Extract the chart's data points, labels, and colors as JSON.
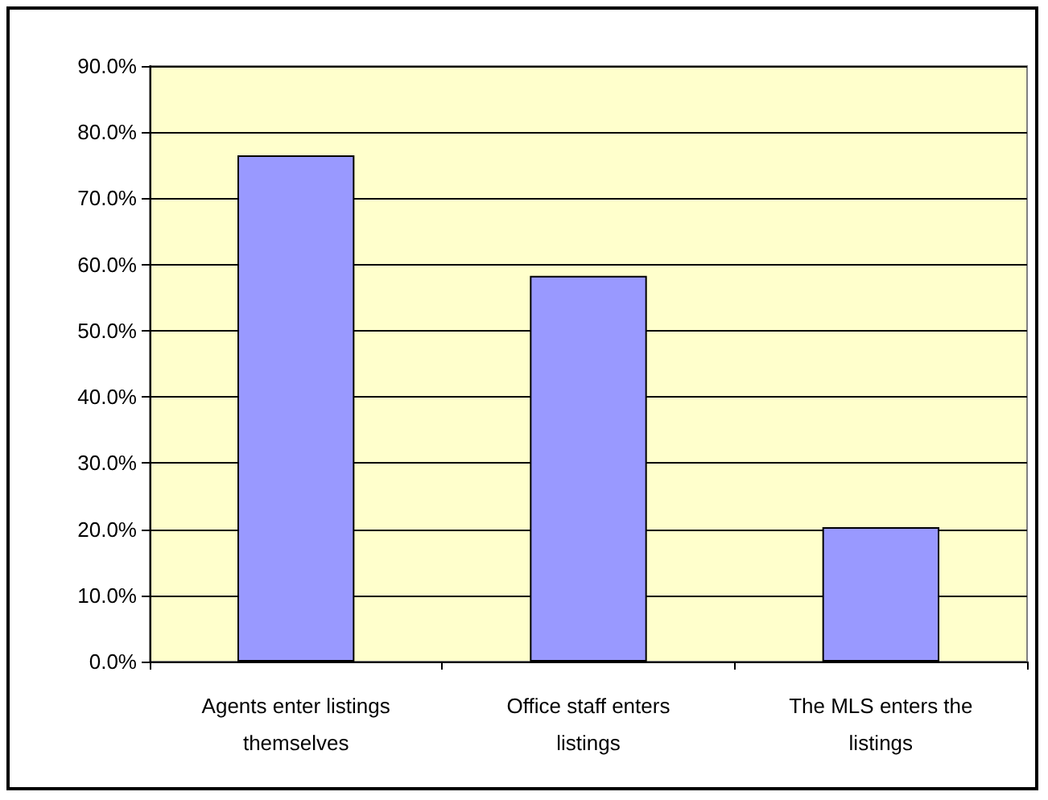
{
  "chart_data": {
    "type": "bar",
    "categories": [
      "Agents enter listings\nthemselves",
      "Office staff enters\nlistings",
      "The MLS enters the\nlistings"
    ],
    "values": [
      76.5,
      58.3,
      20.3
    ],
    "color": "#9999ff",
    "ylim": [
      0,
      90
    ],
    "yticks": [
      {
        "value": 0,
        "label": "0.0%"
      },
      {
        "value": 10,
        "label": "10.0%"
      },
      {
        "value": 20,
        "label": "20.0%"
      },
      {
        "value": 30,
        "label": "30.0%"
      },
      {
        "value": 40,
        "label": "40.0%"
      },
      {
        "value": 50,
        "label": "50.0%"
      },
      {
        "value": 60,
        "label": "60.0%"
      },
      {
        "value": 70,
        "label": "70.0%"
      },
      {
        "value": 80,
        "label": "80.0%"
      },
      {
        "value": 90,
        "label": "90.0%"
      }
    ],
    "grid": "y"
  }
}
